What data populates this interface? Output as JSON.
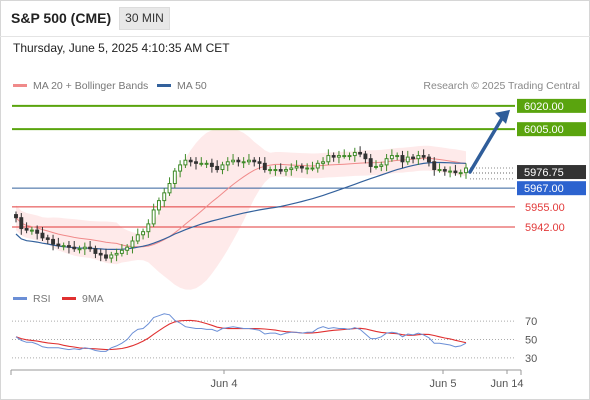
{
  "header": {
    "title": "S&P 500 (CME)",
    "timeframe": "30 MIN",
    "datetime": "Thursday, June 5, 2025 4:10:35 AM CET"
  },
  "legend": {
    "ma_bb": "MA 20 + Bollinger Bands",
    "ma50": "MA 50",
    "source": "Research © 2025 Trading Central",
    "rsi": "RSI",
    "rsi_ma": "9MA"
  },
  "colors": {
    "ma20": "#f08a8a",
    "band": "#fde3e3",
    "ma50": "#33619c",
    "green": "#5aa40e",
    "red": "#e23a3a",
    "up": "#3f8a28",
    "down": "#333333",
    "arrow": "#2f5d9a",
    "rsi": "#6b8fd6",
    "rsi_ma": "#e03030"
  },
  "chart_data": {
    "type": "candlestick",
    "price_range": [
      5895,
      6027
    ],
    "levels": [
      {
        "value": 6020.0,
        "label": "6020.00",
        "kind": "resistance"
      },
      {
        "value": 6005.0,
        "label": "6005.00",
        "kind": "resistance"
      },
      {
        "value": 5967.0,
        "label": "5967.00",
        "kind": "pivot"
      },
      {
        "value": 5955.0,
        "label": "5955.00",
        "kind": "support"
      },
      {
        "value": 5942.0,
        "label": "5942.00",
        "kind": "support"
      }
    ],
    "last_price": {
      "value": 5976.75,
      "label": "5976.75"
    },
    "x_ticks": [
      "Jun 4",
      "Jun 5",
      "Jun 14"
    ],
    "rsi_ticks": [
      "70",
      "50",
      "30"
    ],
    "rsi_range": [
      20,
      80
    ],
    "closes": [
      5948,
      5941,
      5940,
      5940,
      5938,
      5935,
      5934,
      5931,
      5930,
      5930,
      5929,
      5928,
      5928,
      5929,
      5928,
      5925,
      5924,
      5922,
      5924,
      5925,
      5927,
      5929,
      5933,
      5937,
      5939,
      5944,
      5953,
      5959,
      5964,
      5970,
      5978,
      5982,
      5985,
      5984,
      5983,
      5983,
      5983,
      5981,
      5979,
      5982,
      5984,
      5985,
      5984,
      5984,
      5985,
      5984,
      5983,
      5979,
      5979,
      5979,
      5978,
      5979,
      5980,
      5981,
      5980,
      5980,
      5980,
      5983,
      5984,
      5988,
      5987,
      5988,
      5988,
      5988,
      5990,
      5989,
      5986,
      5981,
      5981,
      5982,
      5986,
      5988,
      5988,
      5984,
      5987,
      5986,
      5988,
      5987,
      5984,
      5979,
      5979,
      5978,
      5978,
      5977,
      5977,
      5980
    ],
    "rsi": [
      53,
      49,
      47,
      47,
      45,
      42,
      41,
      41,
      41,
      40,
      39,
      40,
      39,
      41,
      40,
      38,
      37,
      37,
      41,
      43,
      46,
      50,
      57,
      61,
      62,
      67,
      74,
      76,
      78,
      77,
      71,
      68,
      64,
      63,
      62,
      62,
      61,
      61,
      59,
      62,
      63,
      64,
      63,
      62,
      62,
      61,
      60,
      56,
      57,
      57,
      55,
      57,
      58,
      58,
      57,
      58,
      58,
      62,
      64,
      62,
      63,
      62,
      62,
      61,
      63,
      61,
      56,
      51,
      51,
      53,
      57,
      58,
      57,
      53,
      56,
      55,
      57,
      55,
      52,
      46,
      46,
      45,
      44,
      42,
      43,
      46
    ]
  }
}
